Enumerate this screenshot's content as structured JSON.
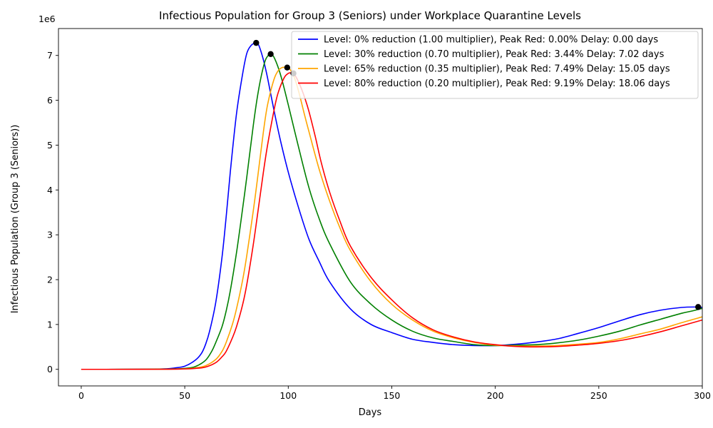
{
  "chart_data": {
    "type": "line",
    "title": "Infectious Population for Group 3 (Seniors) under Workplace Quarantine Levels",
    "xlabel": "Days",
    "ylabel": "Infectious Population (Group 3 (Seniors))",
    "y_offset_label": "1e6",
    "xlim": [
      -11,
      300
    ],
    "ylim": [
      -0.37,
      7.6
    ],
    "y_scale_factor": 1000000,
    "x_ticks": [
      0,
      50,
      100,
      150,
      200,
      250,
      300
    ],
    "x_tick_labels": [
      "0",
      "50",
      "100",
      "150",
      "200",
      "250",
      "300"
    ],
    "y_ticks": [
      0,
      1,
      2,
      3,
      4,
      5,
      6,
      7
    ],
    "y_tick_labels": [
      "0",
      "1",
      "2",
      "3",
      "4",
      "5",
      "6",
      "7"
    ],
    "grid": false,
    "legend_position": "top-right",
    "series": [
      {
        "name": "Level: 0% reduction (1.00 multiplier), Peak Red: 0.00% Delay: 0.00 days",
        "color": "#0000ff",
        "x": [
          0,
          20,
          35,
          40,
          45,
          50,
          55,
          58,
          60,
          62,
          65,
          68,
          70,
          72,
          75,
          78,
          80,
          82,
          84,
          85,
          86,
          88,
          90,
          93,
          96,
          100,
          105,
          110,
          115,
          120,
          130,
          140,
          150,
          160,
          170,
          180,
          190,
          200,
          210,
          220,
          230,
          240,
          250,
          260,
          270,
          280,
          290,
          297,
          300
        ],
        "y": [
          0,
          0.0005,
          0.004,
          0.01,
          0.03,
          0.07,
          0.2,
          0.35,
          0.55,
          0.85,
          1.5,
          2.5,
          3.4,
          4.4,
          5.7,
          6.6,
          7.05,
          7.22,
          7.28,
          7.27,
          7.2,
          6.9,
          6.5,
          5.8,
          5.15,
          4.4,
          3.6,
          2.9,
          2.4,
          1.95,
          1.35,
          1.0,
          0.82,
          0.67,
          0.6,
          0.55,
          0.53,
          0.53,
          0.56,
          0.61,
          0.68,
          0.8,
          0.93,
          1.08,
          1.22,
          1.32,
          1.38,
          1.39,
          1.38
        ]
      },
      {
        "name": "Level: 30% reduction (0.70 multiplier), Peak Red: 3.44% Delay: 7.02 days",
        "color": "#008000",
        "x": [
          0,
          20,
          40,
          45,
          50,
          55,
          60,
          63,
          65,
          68,
          70,
          72,
          75,
          78,
          80,
          83,
          85,
          87,
          89,
          91,
          92,
          93,
          95,
          97,
          100,
          105,
          110,
          115,
          120,
          130,
          140,
          150,
          160,
          170,
          180,
          190,
          200,
          210,
          220,
          230,
          240,
          250,
          260,
          270,
          280,
          290,
          295,
          300
        ],
        "y": [
          0,
          0.0003,
          0.005,
          0.01,
          0.02,
          0.06,
          0.2,
          0.4,
          0.6,
          0.95,
          1.3,
          1.75,
          2.6,
          3.6,
          4.3,
          5.4,
          6.05,
          6.55,
          6.9,
          7.03,
          7.02,
          6.97,
          6.75,
          6.45,
          5.9,
          4.95,
          4.05,
          3.35,
          2.8,
          1.95,
          1.45,
          1.1,
          0.85,
          0.7,
          0.62,
          0.55,
          0.53,
          0.54,
          0.55,
          0.59,
          0.65,
          0.74,
          0.85,
          0.99,
          1.12,
          1.25,
          1.3,
          1.36
        ]
      },
      {
        "name": "Level: 65% reduction (0.35 multiplier), Peak Red: 7.49% Delay: 15.05 days",
        "color": "#ffa500",
        "x": [
          0,
          20,
          40,
          50,
          55,
          60,
          65,
          68,
          70,
          73,
          75,
          78,
          80,
          83,
          85,
          88,
          90,
          93,
          95,
          97,
          99,
          100,
          101,
          103,
          105,
          108,
          110,
          115,
          120,
          125,
          130,
          140,
          150,
          160,
          170,
          180,
          190,
          200,
          210,
          220,
          230,
          240,
          250,
          260,
          270,
          280,
          290,
          300
        ],
        "y": [
          0,
          0.0002,
          0.003,
          0.012,
          0.03,
          0.08,
          0.22,
          0.4,
          0.6,
          1.0,
          1.35,
          2.0,
          2.55,
          3.5,
          4.2,
          5.3,
          5.9,
          6.45,
          6.65,
          6.73,
          6.73,
          6.72,
          6.68,
          6.5,
          6.2,
          5.65,
          5.3,
          4.45,
          3.75,
          3.15,
          2.65,
          1.95,
          1.45,
          1.1,
          0.85,
          0.7,
          0.6,
          0.54,
          0.52,
          0.52,
          0.53,
          0.56,
          0.6,
          0.68,
          0.79,
          0.9,
          1.04,
          1.17
        ]
      },
      {
        "name": "Level: 80% reduction (0.20 multiplier), Peak Red: 9.19% Delay: 18.06 days",
        "color": "#ff0000",
        "x": [
          0,
          20,
          40,
          50,
          55,
          60,
          65,
          68,
          70,
          73,
          75,
          78,
          80,
          83,
          85,
          88,
          90,
          93,
          95,
          98,
          100,
          101,
          102,
          103,
          104,
          106,
          108,
          110,
          113,
          116,
          120,
          125,
          130,
          140,
          150,
          160,
          170,
          180,
          190,
          200,
          210,
          220,
          230,
          240,
          250,
          260,
          270,
          280,
          290,
          300
        ],
        "y": [
          0,
          0.0001,
          0.002,
          0.008,
          0.02,
          0.05,
          0.15,
          0.28,
          0.4,
          0.7,
          0.95,
          1.45,
          1.9,
          2.75,
          3.4,
          4.4,
          5.0,
          5.75,
          6.15,
          6.5,
          6.6,
          6.61,
          6.6,
          6.57,
          6.5,
          6.3,
          6.05,
          5.75,
          5.2,
          4.6,
          3.95,
          3.3,
          2.75,
          2.05,
          1.55,
          1.15,
          0.88,
          0.72,
          0.61,
          0.55,
          0.51,
          0.5,
          0.51,
          0.54,
          0.58,
          0.64,
          0.73,
          0.84,
          0.97,
          1.1
        ]
      }
    ],
    "peak_markers": [
      {
        "x": 84.5,
        "y": 7.28
      },
      {
        "x": 91.5,
        "y": 7.03
      },
      {
        "x": 99.5,
        "y": 6.73
      },
      {
        "x": 102.5,
        "y": 6.6
      },
      {
        "x": 298,
        "y": 1.39
      }
    ]
  }
}
